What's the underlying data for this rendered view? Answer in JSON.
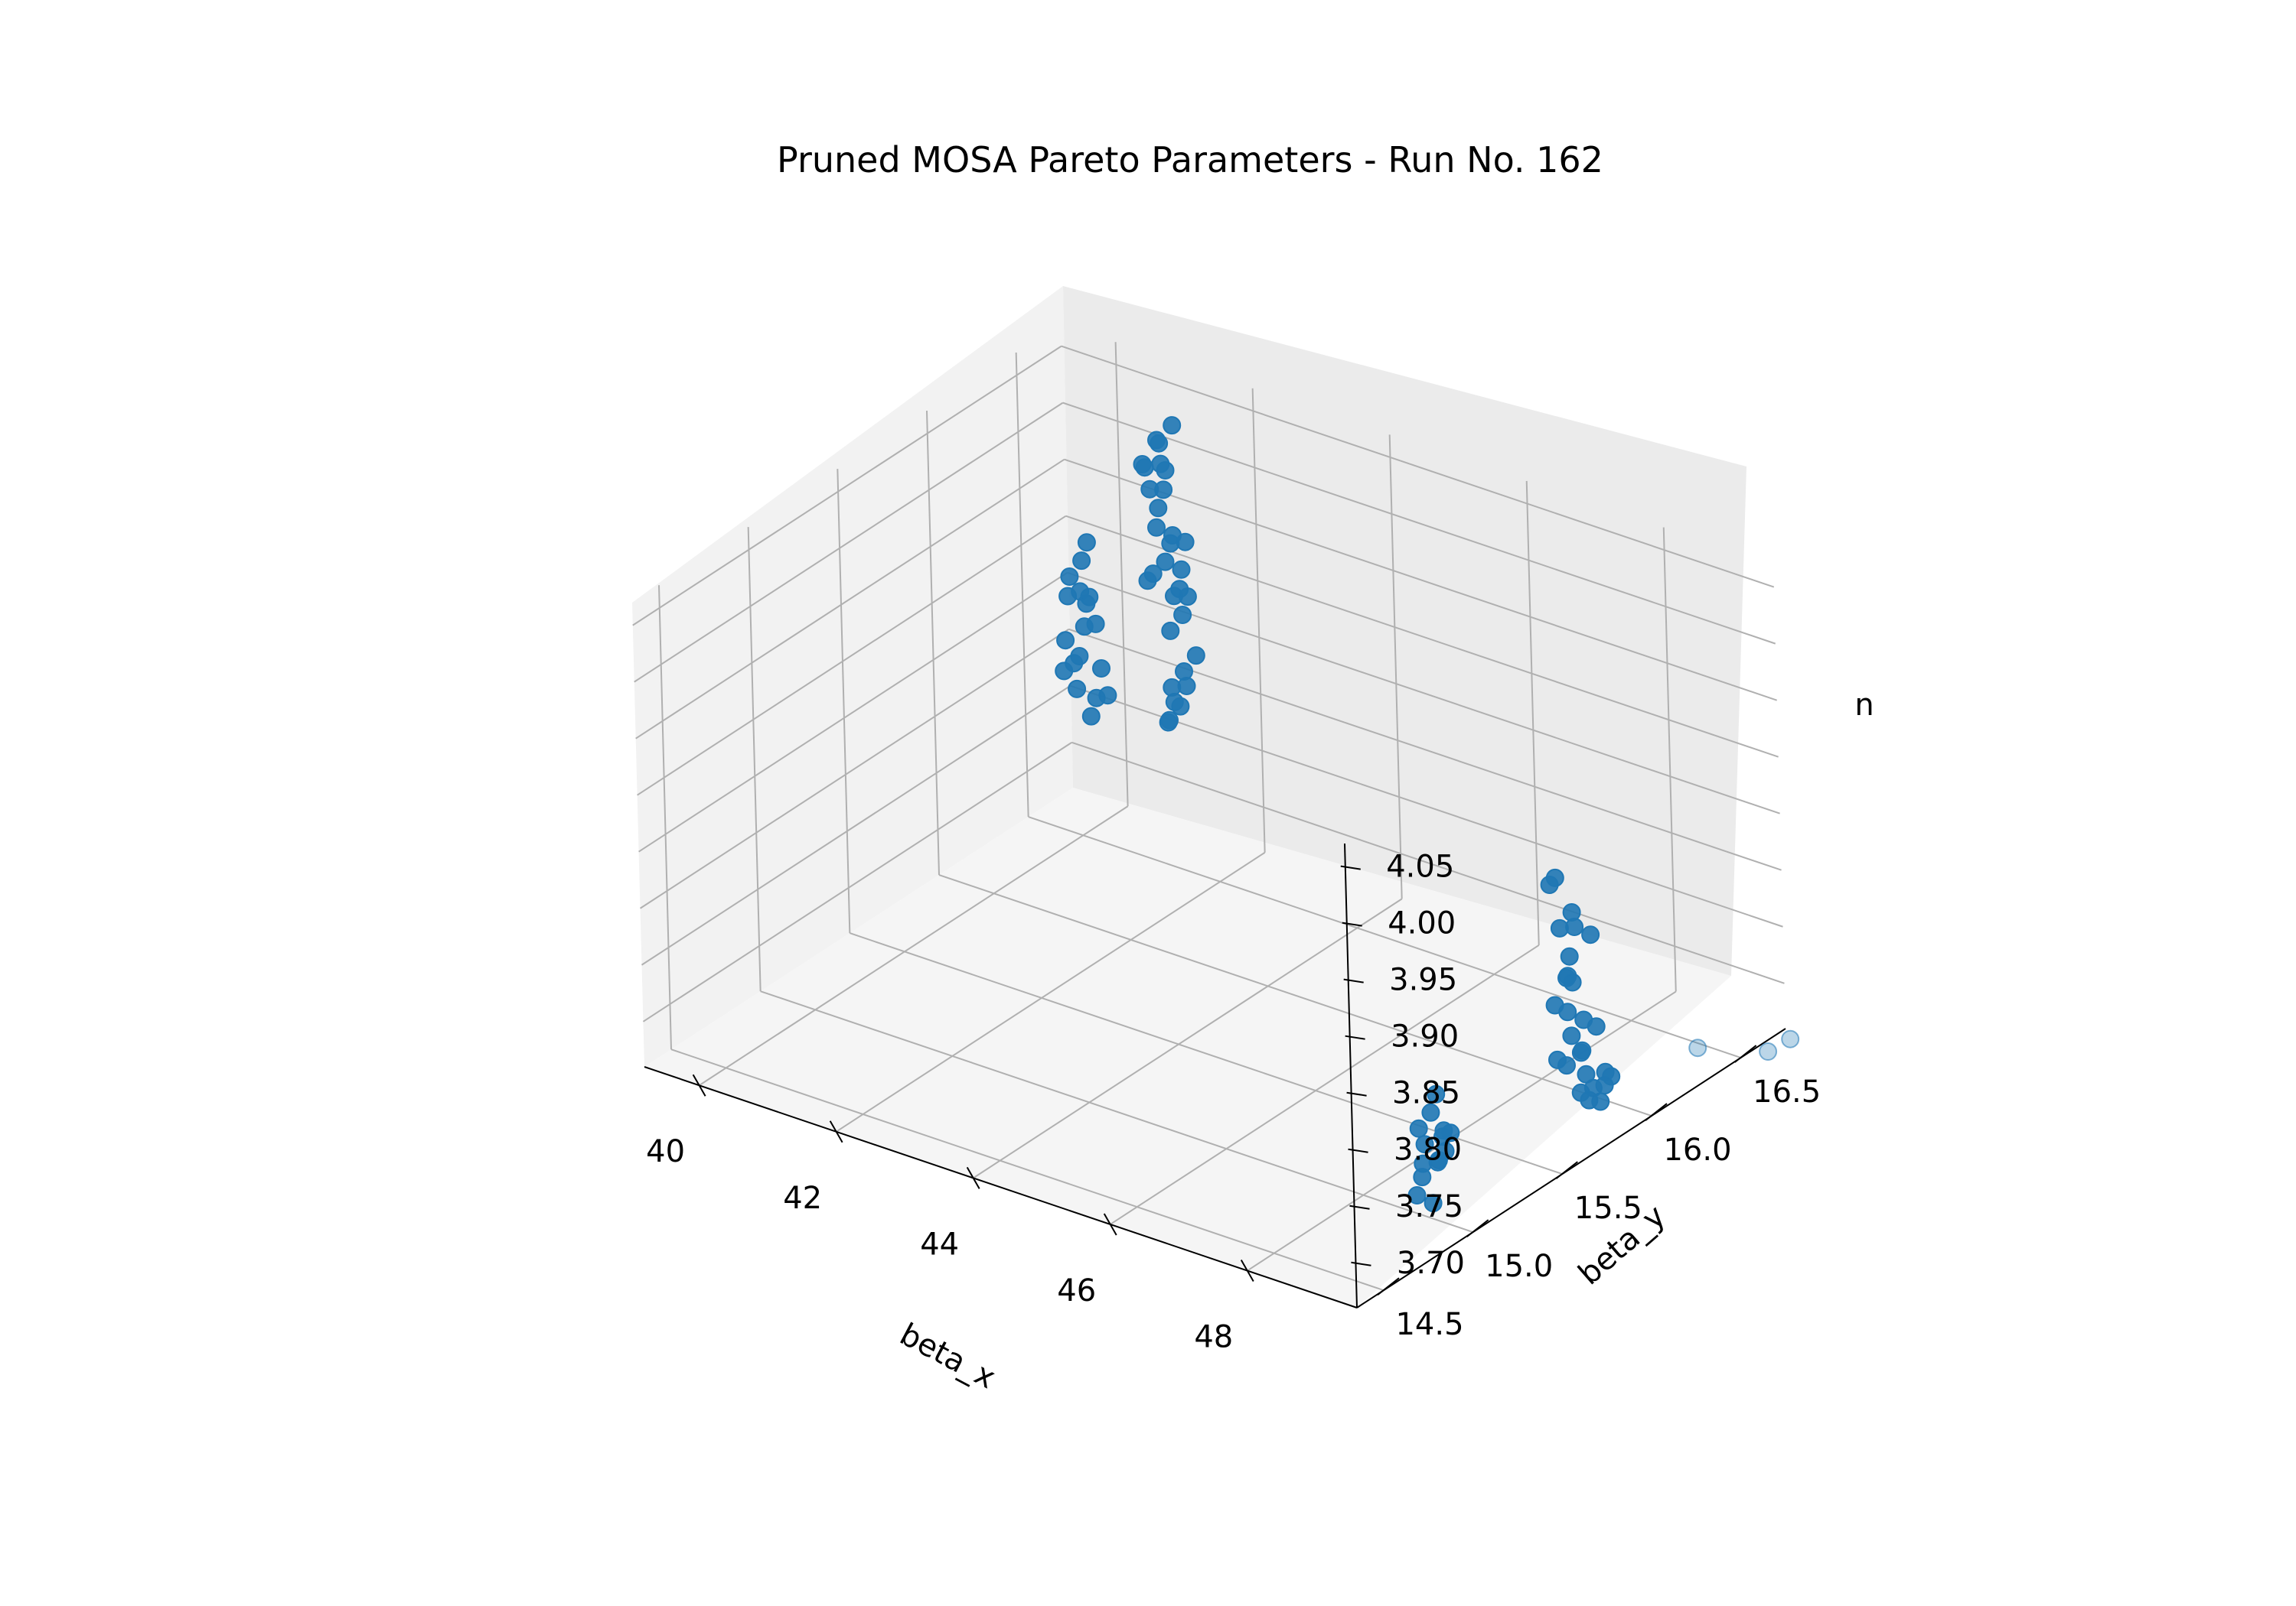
{
  "chart_data": {
    "type": "scatter",
    "title": "Pruned MOSA Pareto Parameters - Run No. 162",
    "xlabel": "beta_x",
    "ylabel": "beta_y",
    "zlabel": "n",
    "x_ticks": [
      "40",
      "42",
      "44",
      "46",
      "48"
    ],
    "y_ticks": [
      "14.5",
      "15.0",
      "15.5",
      "16.0",
      "16.5"
    ],
    "z_ticks": [
      "3.70",
      "3.75",
      "3.80",
      "3.85",
      "3.90",
      "3.95",
      "4.00",
      "4.05"
    ],
    "xlim": [
      39.2,
      49.6
    ],
    "ylim": [
      14.35,
      16.75
    ],
    "zlim": [
      3.66,
      4.07
    ],
    "grid": true,
    "marker_color": "#1f77b4",
    "series": [
      {
        "points": [
          [
            40.3,
            16.45,
            3.93
          ],
          [
            40.35,
            16.4,
            3.92
          ],
          [
            40.3,
            16.35,
            3.91
          ],
          [
            40.4,
            16.3,
            3.9
          ],
          [
            40.45,
            16.4,
            3.89
          ],
          [
            40.35,
            16.42,
            3.88
          ],
          [
            40.5,
            16.35,
            3.87
          ],
          [
            40.4,
            16.45,
            3.86
          ],
          [
            40.55,
            16.3,
            3.85
          ],
          [
            40.45,
            16.25,
            3.84
          ],
          [
            40.6,
            16.4,
            3.83
          ],
          [
            40.5,
            16.3,
            3.82
          ],
          [
            40.65,
            16.35,
            3.81
          ],
          [
            40.55,
            16.45,
            3.8
          ],
          [
            40.7,
            16.3,
            3.8
          ],
          [
            40.6,
            16.25,
            3.85
          ],
          [
            40.45,
            16.35,
            3.9
          ],
          [
            40.35,
            16.3,
            3.86
          ],
          [
            41.4,
            16.45,
            4.04
          ],
          [
            41.5,
            16.4,
            4.05
          ],
          [
            41.45,
            16.35,
            4.03
          ],
          [
            41.6,
            16.45,
            4.06
          ],
          [
            41.55,
            16.3,
            4.04
          ],
          [
            41.35,
            16.5,
            4.01
          ],
          [
            41.45,
            16.45,
            4.0
          ],
          [
            41.5,
            16.4,
            3.99
          ],
          [
            41.6,
            16.35,
            3.98
          ],
          [
            41.7,
            16.4,
            3.97
          ],
          [
            41.8,
            16.35,
            3.97
          ],
          [
            41.85,
            16.3,
            3.96
          ],
          [
            41.95,
            16.35,
            3.95
          ],
          [
            42.05,
            16.3,
            3.94
          ],
          [
            42.1,
            16.25,
            3.94
          ],
          [
            41.75,
            16.45,
            3.96
          ],
          [
            41.4,
            16.4,
            3.93
          ],
          [
            41.45,
            16.35,
            3.93
          ],
          [
            41.9,
            16.4,
            3.92
          ],
          [
            41.95,
            16.35,
            3.91
          ],
          [
            41.9,
            16.3,
            3.9
          ],
          [
            42.0,
            16.4,
            3.87
          ],
          [
            41.95,
            16.35,
            3.86
          ],
          [
            41.9,
            16.3,
            3.85
          ],
          [
            41.85,
            16.4,
            3.84
          ],
          [
            41.8,
            16.35,
            3.83
          ],
          [
            41.85,
            16.3,
            3.82
          ],
          [
            41.75,
            16.4,
            3.82
          ],
          [
            41.7,
            16.35,
            3.81
          ],
          [
            41.65,
            16.3,
            4.02
          ],
          [
            41.55,
            16.4,
            4.03
          ],
          [
            47.2,
            16.4,
            3.78
          ],
          [
            47.25,
            16.35,
            3.78
          ],
          [
            47.7,
            16.3,
            3.77
          ],
          [
            47.65,
            16.25,
            3.76
          ],
          [
            47.6,
            16.35,
            3.75
          ],
          [
            47.7,
            16.4,
            3.74
          ],
          [
            47.65,
            16.3,
            3.73
          ],
          [
            47.75,
            16.25,
            3.72
          ],
          [
            47.6,
            16.3,
            3.71
          ],
          [
            47.55,
            16.35,
            3.7
          ],
          [
            47.55,
            16.25,
            3.69
          ],
          [
            47.6,
            16.3,
            3.68
          ],
          [
            47.7,
            16.35,
            3.67
          ],
          [
            47.65,
            16.3,
            3.66
          ],
          [
            47.75,
            16.4,
            3.66
          ],
          [
            47.8,
            16.3,
            3.65
          ],
          [
            47.7,
            16.25,
            3.64
          ],
          [
            47.65,
            16.35,
            3.64
          ],
          [
            47.85,
            16.3,
            3.63
          ],
          [
            47.9,
            16.25,
            3.62
          ],
          [
            47.95,
            16.3,
            3.62
          ],
          [
            48.0,
            16.35,
            3.63
          ],
          [
            47.95,
            16.4,
            3.62
          ],
          [
            48.05,
            16.3,
            3.61
          ],
          [
            47.75,
            16.35,
            3.6
          ],
          [
            47.85,
            16.4,
            3.61
          ],
          [
            47.7,
            16.2,
            3.65
          ],
          [
            46.7,
            15.9,
            3.63
          ],
          [
            46.75,
            15.85,
            3.62
          ],
          [
            46.7,
            15.8,
            3.61
          ],
          [
            46.8,
            15.9,
            3.6
          ],
          [
            46.65,
            15.85,
            3.59
          ],
          [
            46.75,
            15.8,
            3.58
          ],
          [
            46.7,
            15.9,
            3.57
          ],
          [
            46.6,
            15.85,
            3.56
          ],
          [
            46.65,
            15.8,
            3.55
          ],
          [
            46.75,
            15.85,
            3.54
          ],
          [
            46.95,
            15.85,
            3.59
          ],
          [
            47.05,
            15.8,
            3.61
          ],
          [
            46.9,
            15.9,
            3.6
          ],
          [
            46.85,
            15.85,
            3.58
          ],
          [
            48.7,
            16.6,
            3.64
          ],
          [
            49.8,
            16.7,
            3.66
          ],
          [
            49.6,
            16.65,
            3.65
          ]
        ]
      }
    ]
  }
}
